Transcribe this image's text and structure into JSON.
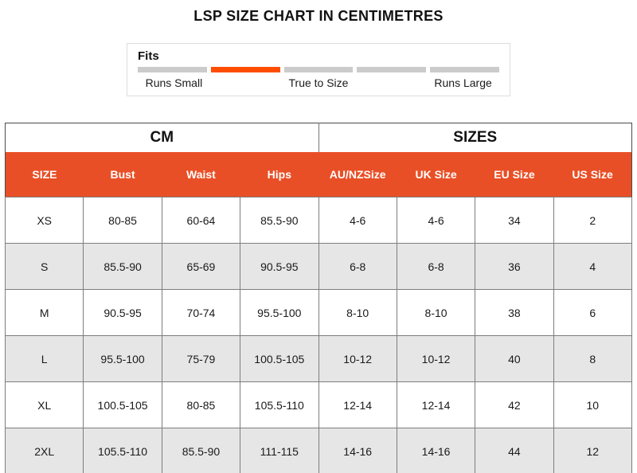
{
  "title": "LSP SIZE CHART IN CENTIMETRES",
  "fits": {
    "label": "Fits",
    "active_segment_index": 1,
    "segment_count": 5,
    "scale_labels": [
      "Runs Small",
      "True to Size",
      "Runs Large"
    ]
  },
  "colors": {
    "header_orange": "#e94f26",
    "fits_active_orange": "#ff4d00",
    "fits_inactive_gray": "#cbcbcb",
    "alt_row_gray": "#e6e6e6",
    "cell_border_gray": "#7d7d7d",
    "outer_border": "#4b4b4b",
    "fits_box_border": "#dddddd"
  },
  "table": {
    "group_headers": {
      "cm": "CM",
      "sizes": "SIZES"
    },
    "columns": [
      "SIZE",
      "Bust",
      "Waist",
      "Hips",
      "AU/NZSize",
      "UK Size",
      "EU Size",
      "US Size"
    ],
    "rows": [
      [
        "XS",
        "80-85",
        "60-64",
        "85.5-90",
        "4-6",
        "4-6",
        "34",
        "2"
      ],
      [
        "S",
        "85.5-90",
        "65-69",
        "90.5-95",
        "6-8",
        "6-8",
        "36",
        "4"
      ],
      [
        "M",
        "90.5-95",
        "70-74",
        "95.5-100",
        "8-10",
        "8-10",
        "38",
        "6"
      ],
      [
        "L",
        "95.5-100",
        "75-79",
        "100.5-105",
        "10-12",
        "10-12",
        "40",
        "8"
      ],
      [
        "XL",
        "100.5-105",
        "80-85",
        "105.5-110",
        "12-14",
        "12-14",
        "42",
        "10"
      ],
      [
        "2XL",
        "105.5-110",
        "85.5-90",
        "111-115",
        "14-16",
        "14-16",
        "44",
        "12"
      ]
    ]
  }
}
